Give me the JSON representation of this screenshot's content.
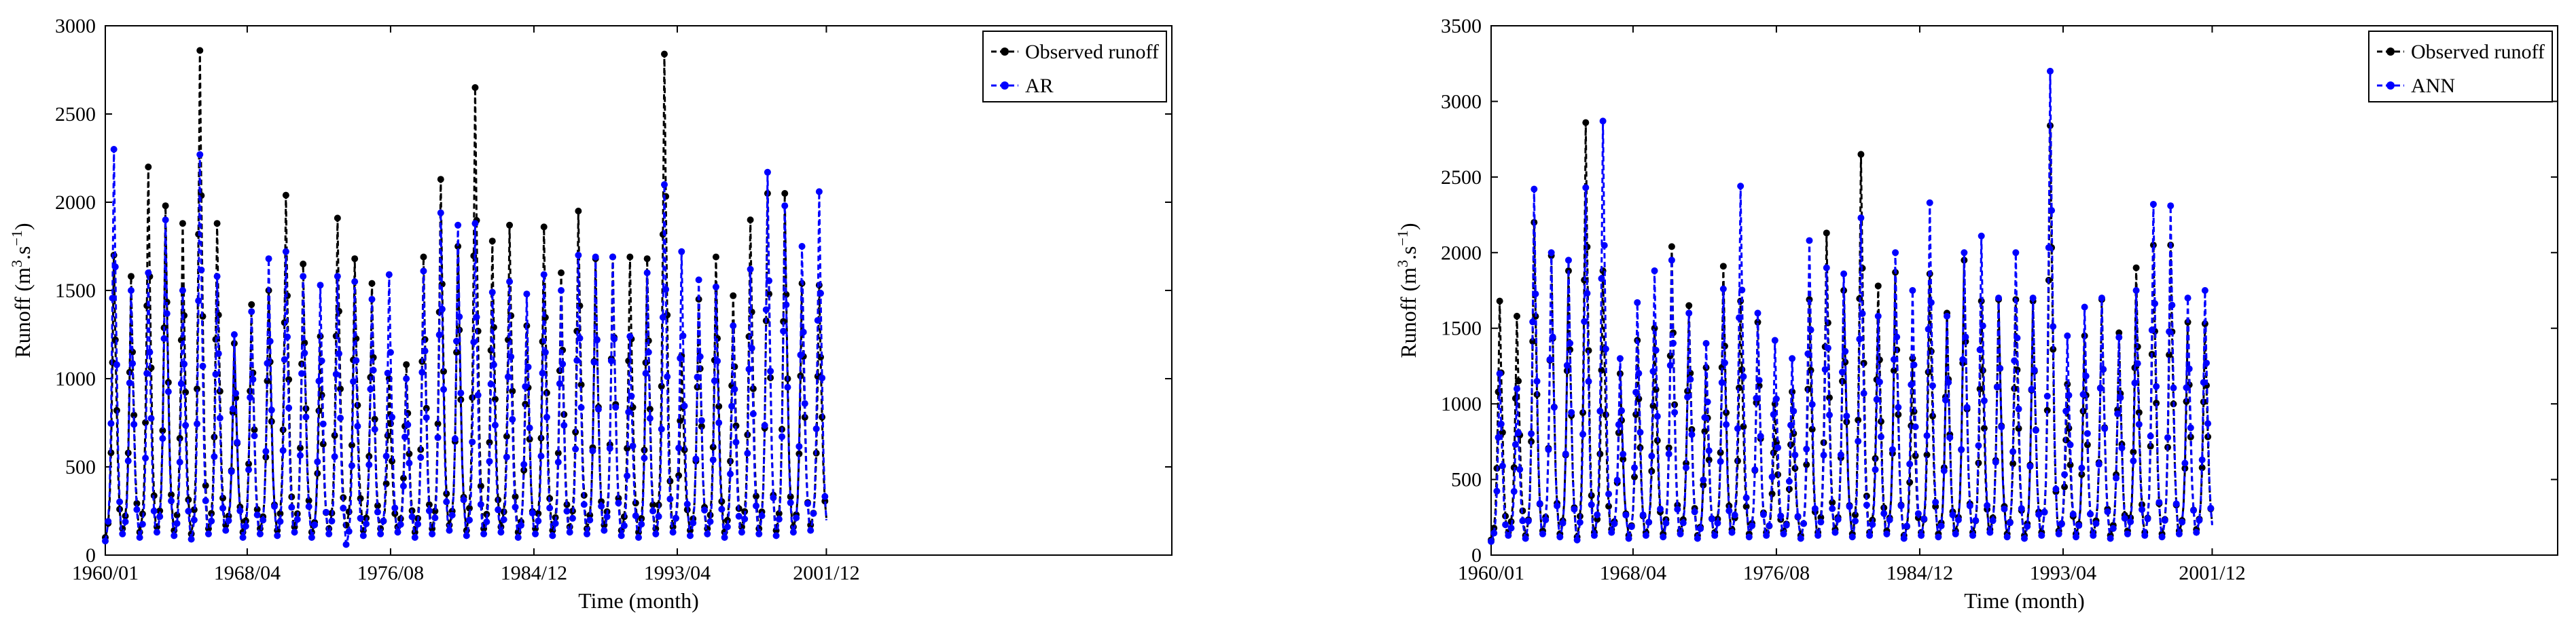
{
  "chart_data": [
    {
      "type": "line",
      "xlabel": "Time (month)",
      "ylabel_main": "Runoff (m",
      "ylabel_sup1": "3",
      "ylabel_mid": ".s",
      "ylabel_sup2": "−1",
      "ylabel_end": ")",
      "x_ticks": [
        "1960/01",
        "1968/04",
        "1976/08",
        "1984/12",
        "1993/04",
        "2001/12"
      ],
      "x_tick_months": [
        0,
        99,
        199,
        299,
        399,
        503
      ],
      "xlim_months": [
        0,
        744
      ],
      "ylim": [
        0,
        3000
      ],
      "y_ticks": [
        0,
        500,
        1000,
        1500,
        2000,
        2500,
        3000
      ],
      "legend_position": "top-right",
      "series": [
        {
          "name": "Observed runoff",
          "color": "#000000",
          "style": "dashed",
          "marker": "circle",
          "annual_peaks": [
            1700,
            1580,
            2200,
            1980,
            1880,
            2860,
            1880,
            1200,
            1420,
            1500,
            2040,
            1650,
            1240,
            1910,
            1680,
            1540,
            1000,
            1080,
            1690,
            2130,
            1750,
            2650,
            1780,
            1870,
            1300,
            1860,
            1600,
            1950,
            1680,
            1690,
            1690,
            1680,
            2840,
            1130,
            1450,
            1690,
            1470,
            1900,
            2050,
            2050,
            1540,
            1530
          ],
          "annual_troughs": [
            100,
            150,
            130,
            160,
            140,
            120,
            150,
            170,
            130,
            150,
            140,
            160,
            130,
            150,
            170,
            140,
            150,
            160,
            130,
            150,
            170,
            140,
            150,
            160,
            130,
            150,
            140,
            160,
            150,
            170,
            140,
            130,
            150,
            160,
            140,
            150,
            130,
            160,
            150,
            140,
            160,
            170
          ]
        },
        {
          "name": "AR",
          "color": "#0000ff",
          "style": "dashed",
          "marker": "circle",
          "annual_peaks": [
            2300,
            1500,
            1600,
            1900,
            1500,
            2270,
            1580,
            1250,
            1380,
            1680,
            1720,
            1580,
            1530,
            1580,
            1550,
            1450,
            1590,
            1000,
            1610,
            1940,
            1870,
            1880,
            1490,
            1550,
            1480,
            1590,
            1500,
            1700,
            1690,
            1690,
            1240,
            1600,
            2100,
            1720,
            1560,
            1520,
            1300,
            1620,
            2170,
            1980,
            1750,
            2060
          ],
          "annual_troughs": [
            80,
            120,
            100,
            130,
            110,
            90,
            120,
            140,
            100,
            120,
            110,
            130,
            100,
            120,
            60,
            110,
            120,
            130,
            100,
            120,
            140,
            110,
            120,
            130,
            100,
            120,
            110,
            130,
            120,
            140,
            110,
            100,
            120,
            130,
            110,
            120,
            100,
            130,
            120,
            110,
            130,
            140
          ]
        }
      ]
    },
    {
      "type": "line",
      "xlabel": "Time (month)",
      "ylabel_main": "Runoff (m",
      "ylabel_sup1": "3",
      "ylabel_mid": ".s",
      "ylabel_sup2": "−1",
      "ylabel_end": ")",
      "x_ticks": [
        "1960/01",
        "1968/04",
        "1976/08",
        "1984/12",
        "1993/04",
        "2001/12"
      ],
      "x_tick_months": [
        0,
        99,
        199,
        299,
        399,
        503
      ],
      "xlim_months": [
        0,
        744
      ],
      "ylim": [
        0,
        3500
      ],
      "y_ticks": [
        0,
        500,
        1000,
        1500,
        2000,
        2500,
        3000,
        3500
      ],
      "legend_position": "top-right",
      "series": [
        {
          "name": "Observed runoff",
          "color": "#000000",
          "style": "dashed",
          "marker": "circle",
          "annual_peaks": [
            1680,
            1580,
            2200,
            1980,
            1880,
            2860,
            1880,
            1200,
            1420,
            1500,
            2040,
            1650,
            1240,
            1910,
            1680,
            1540,
            1000,
            1080,
            1690,
            2130,
            1750,
            2650,
            1780,
            1870,
            1300,
            1860,
            1600,
            1950,
            1680,
            1690,
            1690,
            1680,
            2840,
            1130,
            1450,
            1690,
            1470,
            1900,
            2050,
            2050,
            1540,
            1530
          ],
          "annual_troughs": [
            100,
            150,
            130,
            160,
            140,
            120,
            150,
            170,
            130,
            150,
            140,
            160,
            130,
            150,
            170,
            140,
            150,
            160,
            130,
            150,
            170,
            140,
            150,
            160,
            130,
            150,
            140,
            160,
            150,
            170,
            140,
            130,
            150,
            160,
            140,
            150,
            130,
            160,
            150,
            140,
            160,
            170
          ]
        },
        {
          "name": "ANN",
          "color": "#0000ff",
          "style": "dashed",
          "marker": "circle",
          "annual_peaks": [
            1200,
            1100,
            2420,
            2000,
            1950,
            2430,
            2870,
            1300,
            1670,
            1880,
            1950,
            1600,
            1400,
            1760,
            2440,
            1600,
            1420,
            1300,
            2080,
            1900,
            1860,
            2230,
            1580,
            2000,
            1750,
            2330,
            1580,
            2000,
            2110,
            1700,
            2000,
            1700,
            3200,
            1450,
            1640,
            1700,
            1440,
            1750,
            2320,
            2310,
            1700,
            1750
          ],
          "annual_troughs": [
            90,
            130,
            110,
            140,
            120,
            100,
            130,
            150,
            110,
            130,
            120,
            140,
            110,
            130,
            150,
            120,
            130,
            140,
            110,
            130,
            150,
            120,
            130,
            140,
            110,
            130,
            120,
            140,
            130,
            150,
            120,
            110,
            130,
            140,
            120,
            130,
            110,
            140,
            130,
            120,
            140,
            150
          ]
        }
      ]
    }
  ]
}
